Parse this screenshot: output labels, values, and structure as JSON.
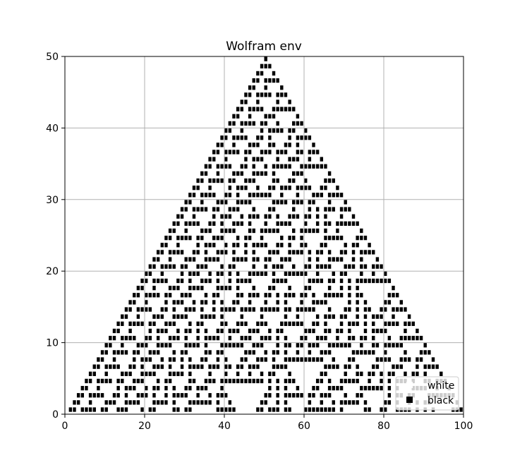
{
  "chart_data": {
    "type": "heatmap",
    "title": "Wolfram env",
    "xlabel": "",
    "ylabel": "",
    "xlim": [
      0,
      100
    ],
    "ylim": [
      0,
      50
    ],
    "x_ticks": [
      "0",
      "20",
      "40",
      "60",
      "80",
      "100"
    ],
    "y_ticks": [
      "0",
      "10",
      "20",
      "30",
      "40",
      "50"
    ],
    "x_tick_values": [
      0,
      20,
      40,
      60,
      80,
      100
    ],
    "y_tick_values": [
      0,
      10,
      20,
      30,
      40,
      50
    ],
    "grid": true,
    "legend": {
      "placement": "bottom-right",
      "entries": [
        {
          "label": "white",
          "color": "#ffffff"
        },
        {
          "label": "black",
          "color": "#000000"
        }
      ]
    },
    "cellular_automaton": {
      "rule": 30,
      "width": 100,
      "steps": 50,
      "initial_active_cell": 50
    },
    "colors": {
      "on": "#000000",
      "off": "#ffffff",
      "grid": "#b0b0b0"
    }
  }
}
